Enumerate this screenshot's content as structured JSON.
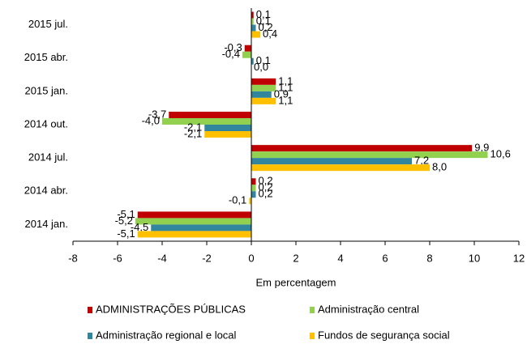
{
  "chart_data": {
    "type": "hbar",
    "categories": [
      "2015 jul.",
      "2015 abr.",
      "2015 jan.",
      "2014 out.",
      "2014  jul.",
      "2014 abr.",
      "2014 jan."
    ],
    "series": [
      {
        "name": "ADMINISTRAÇÕES PÚBLICAS",
        "color": "#c00000",
        "values": [
          0.1,
          -0.3,
          1.1,
          -3.7,
          9.9,
          0.2,
          -5.1
        ],
        "value_labels": [
          "0,1",
          "-0,3",
          "1,1",
          "-3,7",
          "9,9",
          "0,2",
          "-5,1"
        ]
      },
      {
        "name": "Administração central",
        "color": "#92d050",
        "values": [
          0.1,
          -0.4,
          1.1,
          -4.0,
          10.6,
          0.2,
          -5.2
        ],
        "value_labels": [
          "0,1",
          "-0,4",
          "1,1",
          "-4,0",
          "10,6",
          "0,2",
          "-5,2"
        ]
      },
      {
        "name": "Administração regional e local",
        "color": "#31859c",
        "values": [
          0.2,
          0.1,
          0.9,
          -2.1,
          7.2,
          0.2,
          -4.5
        ],
        "value_labels": [
          "0,2",
          "0,1",
          "0,9",
          "-2,1",
          "7,2",
          "0,2",
          "-4,5"
        ]
      },
      {
        "name": "Fundos de segurança social",
        "color": "#ffc000",
        "values": [
          0.4,
          0.0,
          1.1,
          -2.1,
          8.0,
          -0.1,
          -5.1
        ],
        "value_labels": [
          "0,4",
          "0,0",
          "1,1",
          "-2,1",
          "8,0",
          "-0,1",
          "-5,1"
        ]
      }
    ],
    "xlabel": "Em percentagem",
    "xlim": [
      -8,
      12
    ],
    "xticks": [
      -8,
      -6,
      -4,
      -2,
      0,
      2,
      4,
      6,
      8,
      10,
      12
    ],
    "grid": false,
    "legend": "bottom"
  }
}
